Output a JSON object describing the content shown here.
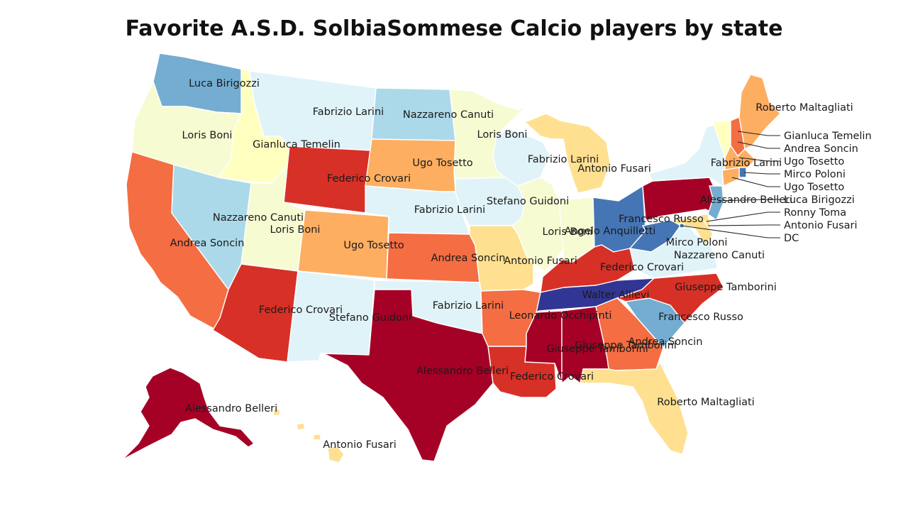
{
  "title": "Favorite A.S.D. SolbiaSommese Calcio players by state",
  "colors": {
    "dark_red": "#a50026",
    "red": "#d73027",
    "orange_red": "#f46d43",
    "orange": "#fdae61",
    "light_orange": "#fee090",
    "pale_yellow": "#ffffbf",
    "pale_green": "#f7fbd2",
    "pale_blue": "#e0f3f8",
    "light_blue": "#abd9e9",
    "mid_blue": "#74add1",
    "blue": "#4575b4",
    "dark_blue": "#313695"
  },
  "states": [
    {
      "code": "WA",
      "player": "Luca Birigozzi",
      "color": "#74add1"
    },
    {
      "code": "OR",
      "player": "Loris Boni",
      "color": "#f7fbd2"
    },
    {
      "code": "CA",
      "player": "Andrea Soncin",
      "color": "#f46d43"
    },
    {
      "code": "ID",
      "player": "Gianluca Temelin",
      "color": "#ffffbf"
    },
    {
      "code": "NV",
      "player": "Nazzareno Canuti",
      "color": "#abd9e9"
    },
    {
      "code": "MT",
      "player": "Fabrizio Larini",
      "color": "#e0f3f8"
    },
    {
      "code": "WY",
      "player": "Federico Crovari",
      "color": "#d73027"
    },
    {
      "code": "UT",
      "player": "Loris Boni",
      "color": "#f7fbd2"
    },
    {
      "code": "AZ",
      "player": "Federico Crovari",
      "color": "#d73027"
    },
    {
      "code": "CO",
      "player": "Ugo Tosetto",
      "color": "#fdae61"
    },
    {
      "code": "NM",
      "player": "Stefano Guidoni",
      "color": "#e0f3f8"
    },
    {
      "code": "ND",
      "player": "Nazzareno Canuti",
      "color": "#abd9e9"
    },
    {
      "code": "SD",
      "player": "Ugo Tosetto",
      "color": "#fdae61"
    },
    {
      "code": "NE",
      "player": "Fabrizio Larini",
      "color": "#e0f3f8"
    },
    {
      "code": "KS",
      "player": "Andrea Soncin",
      "color": "#f46d43"
    },
    {
      "code": "OK",
      "player": "Fabrizio Larini",
      "color": "#e0f3f8"
    },
    {
      "code": "TX",
      "player": "Alessandro Belleri",
      "color": "#a50026"
    },
    {
      "code": "MN",
      "player": "Loris Boni",
      "color": "#f7fbd2"
    },
    {
      "code": "IA",
      "player": "Stefano Guidoni",
      "color": "#e0f3f8"
    },
    {
      "code": "MO",
      "player": "Antonio Fusari",
      "color": "#fee090"
    },
    {
      "code": "AR",
      "player": "Leonardo Occhipinti",
      "color": "#f46d43"
    },
    {
      "code": "LA",
      "player": "Federico Crovari",
      "color": "#d73027"
    },
    {
      "code": "WI",
      "player": "Fabrizio Larini",
      "color": "#e0f3f8"
    },
    {
      "code": "IL",
      "player": "Loris Boni",
      "color": "#f7fbd2"
    },
    {
      "code": "MI",
      "player": "Antonio Fusari",
      "color": "#fee090"
    },
    {
      "code": "IN",
      "player": "Angelo Anquilletti",
      "color": "#f7fbd2"
    },
    {
      "code": "OH",
      "player": "Francesco Russo",
      "color": "#4575b4"
    },
    {
      "code": "KY",
      "player": "Federico Crovari",
      "color": "#d73027"
    },
    {
      "code": "TN",
      "player": "Walter Allievi",
      "color": "#313695"
    },
    {
      "code": "MS",
      "player": "Giuseppe Tamborini",
      "color": "#a50026"
    },
    {
      "code": "AL",
      "player": "Giuseppe Tamborini",
      "color": "#a50026"
    },
    {
      "code": "GA",
      "player": "Andrea Soncin",
      "color": "#f46d43"
    },
    {
      "code": "FL",
      "player": "Roberto Maltagliati",
      "color": "#fee090"
    },
    {
      "code": "SC",
      "player": "Francesco Russo",
      "color": "#74add1"
    },
    {
      "code": "NC",
      "player": "Giuseppe Tamborini",
      "color": "#d73027"
    },
    {
      "code": "VA",
      "player": "Nazzareno Canuti",
      "color": "#e0f3f8"
    },
    {
      "code": "WV",
      "player": "Mirco Poloni",
      "color": "#4575b4"
    },
    {
      "code": "PA",
      "player": "Alessandro Belleri",
      "color": "#a50026"
    },
    {
      "code": "NY",
      "player": "Fabrizio Larini",
      "color": "#e0f3f8"
    },
    {
      "code": "ME",
      "player": "Roberto Maltagliati",
      "color": "#fdae61"
    },
    {
      "code": "VT",
      "player": "Gianluca Temelin",
      "color": "#ffffbf"
    },
    {
      "code": "NH",
      "player": "Andrea Soncin",
      "color": "#f46d43"
    },
    {
      "code": "MA",
      "player": "Ugo Tosetto",
      "color": "#fdae61"
    },
    {
      "code": "RI",
      "player": "Mirco Poloni",
      "color": "#4575b4"
    },
    {
      "code": "CT",
      "player": "Ugo Tosetto",
      "color": "#fdae61"
    },
    {
      "code": "NJ",
      "player": "Luca Birigozzi",
      "color": "#74add1"
    },
    {
      "code": "DE",
      "player": "Ronny Toma",
      "color": "#fee090"
    },
    {
      "code": "MD",
      "player": "Antonio Fusari",
      "color": "#fee090"
    },
    {
      "code": "DC",
      "player": "DC",
      "color": "#4575b4"
    },
    {
      "code": "AK",
      "player": "Alessandro Belleri",
      "color": "#a50026"
    },
    {
      "code": "HI",
      "player": "Antonio Fusari",
      "color": "#fee090"
    }
  ],
  "callouts": [
    "Gianluca Temelin",
    "Andrea Soncin",
    "Ugo Tosetto",
    "Mirco Poloni",
    "Ugo Tosetto",
    "Luca Birigozzi",
    "Ronny Toma",
    "Antonio Fusari",
    "DC"
  ]
}
